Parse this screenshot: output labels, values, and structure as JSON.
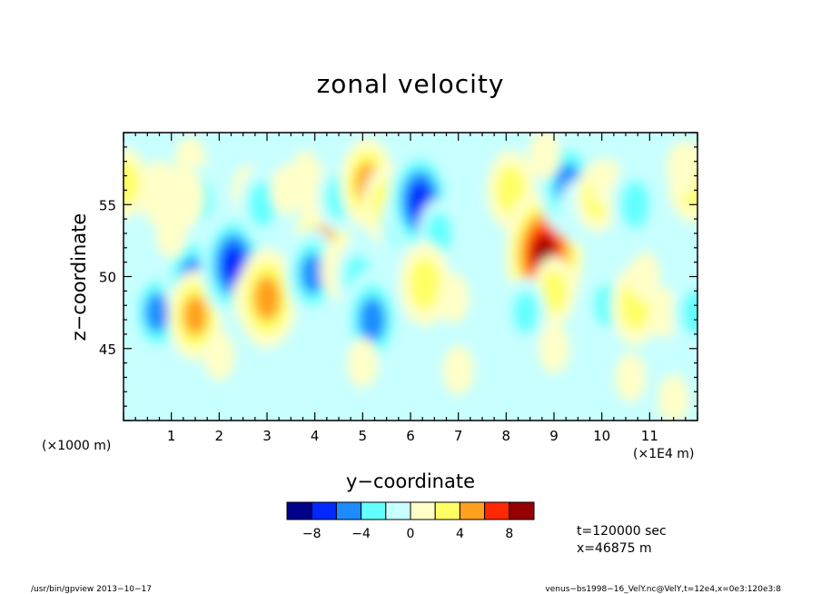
{
  "chart_data": {
    "type": "heatmap",
    "title": "zonal velocity",
    "xlabel": "y−coordinate",
    "ylabel": "z−coordinate",
    "x_unit": "(×1E4 m)",
    "y_unit": "(×1000 m)",
    "xlim": [
      0,
      12
    ],
    "ylim": [
      40,
      60
    ],
    "x_ticks": [
      "1",
      "2",
      "3",
      "4",
      "5",
      "6",
      "7",
      "8",
      "9",
      "10",
      "11"
    ],
    "y_ticks": [
      "45",
      "50",
      "55"
    ],
    "colorbar": {
      "levels": [
        -10,
        -8,
        -6,
        -4,
        -2,
        0,
        2,
        4,
        6,
        8,
        10
      ],
      "colors": [
        "#00008b",
        "#0028ff",
        "#1e8cff",
        "#64ffff",
        "#c8ffff",
        "#ffffc8",
        "#ffff64",
        "#ffa01e",
        "#ff2800",
        "#960000"
      ],
      "tick_labels": [
        "−8",
        "−4",
        "0",
        "4",
        "8"
      ]
    },
    "features": [
      {
        "x": 0.05,
        "y": 56.5,
        "value": 3
      },
      {
        "x": 1.4,
        "y": 58.0,
        "value": 1
      },
      {
        "x": 1.6,
        "y": 55.3,
        "value": -3
      },
      {
        "x": 1.3,
        "y": 55.5,
        "value": 2
      },
      {
        "x": 0.75,
        "y": 55.8,
        "value": 2.5
      },
      {
        "x": 0.7,
        "y": 47.5,
        "value": -5
      },
      {
        "x": 1.45,
        "y": 49.8,
        "value": -6
      },
      {
        "x": 1.5,
        "y": 47.3,
        "value": 5
      },
      {
        "x": 1.0,
        "y": 53.0,
        "value": 1
      },
      {
        "x": 2.3,
        "y": 50.8,
        "value": -7
      },
      {
        "x": 2.6,
        "y": 48.5,
        "value": 1
      },
      {
        "x": 2.6,
        "y": 56.0,
        "value": 1
      },
      {
        "x": 2.9,
        "y": 55.0,
        "value": -3.5
      },
      {
        "x": 3.0,
        "y": 48.5,
        "value": 6
      },
      {
        "x": 3.4,
        "y": 56.0,
        "value": 1
      },
      {
        "x": 3.8,
        "y": 57.0,
        "value": 1
      },
      {
        "x": 4.15,
        "y": 52.5,
        "value": 5
      },
      {
        "x": 3.95,
        "y": 50.2,
        "value": -5
      },
      {
        "x": 4.05,
        "y": 55.5,
        "value": 2
      },
      {
        "x": 4.5,
        "y": 55.5,
        "value": -3
      },
      {
        "x": 4.5,
        "y": 50.5,
        "value": 2
      },
      {
        "x": 5.1,
        "y": 56.5,
        "value": 5
      },
      {
        "x": 4.9,
        "y": 50.0,
        "value": -3
      },
      {
        "x": 5.2,
        "y": 47.0,
        "value": -6
      },
      {
        "x": 5.5,
        "y": 55.0,
        "value": 4
      },
      {
        "x": 5.8,
        "y": 53.5,
        "value": -3
      },
      {
        "x": 6.2,
        "y": 55.2,
        "value": -7
      },
      {
        "x": 6.6,
        "y": 53.0,
        "value": -3
      },
      {
        "x": 6.3,
        "y": 49.5,
        "value": 4.5
      },
      {
        "x": 6.9,
        "y": 48.5,
        "value": 1
      },
      {
        "x": 5.0,
        "y": 44.0,
        "value": 1
      },
      {
        "x": 2.0,
        "y": 44.5,
        "value": 1
      },
      {
        "x": 7.0,
        "y": 43.5,
        "value": 1
      },
      {
        "x": 8.1,
        "y": 56.0,
        "value": 4
      },
      {
        "x": 8.55,
        "y": 53.0,
        "value": 4
      },
      {
        "x": 8.8,
        "y": 51.5,
        "value": 9
      },
      {
        "x": 9.0,
        "y": 49.0,
        "value": 3
      },
      {
        "x": 8.4,
        "y": 47.5,
        "value": -3
      },
      {
        "x": 9.3,
        "y": 56.3,
        "value": -6
      },
      {
        "x": 9.5,
        "y": 54.5,
        "value": -2.5
      },
      {
        "x": 9.9,
        "y": 55.5,
        "value": 3
      },
      {
        "x": 10.1,
        "y": 56.5,
        "value": 1
      },
      {
        "x": 10.7,
        "y": 55.0,
        "value": -4
      },
      {
        "x": 10.1,
        "y": 48.0,
        "value": -3
      },
      {
        "x": 10.7,
        "y": 48.0,
        "value": 4
      },
      {
        "x": 10.9,
        "y": 50.0,
        "value": 1
      },
      {
        "x": 11.9,
        "y": 56.5,
        "value": 4
      },
      {
        "x": 11.7,
        "y": 57.5,
        "value": 1.5
      },
      {
        "x": 11.3,
        "y": 47.5,
        "value": 1
      },
      {
        "x": 11.95,
        "y": 47.5,
        "value": -3.5
      },
      {
        "x": 10.6,
        "y": 43.0,
        "value": 1
      },
      {
        "x": 11.5,
        "y": 41.5,
        "value": 1
      },
      {
        "x": 8.8,
        "y": 58.5,
        "value": 1
      },
      {
        "x": 9.0,
        "y": 45.0,
        "value": 1
      },
      {
        "x": 3.5,
        "y": 42.0,
        "value": -1
      },
      {
        "x": 8.0,
        "y": 43.0,
        "value": -1
      }
    ]
  },
  "info": {
    "time_label": "t=120000 sec",
    "x_label": "x=46875 m"
  },
  "footer": {
    "left": "/usr/bin/gpview   2013−10−17",
    "right": "venus−bs1998−16_VelY.nc@VelY,t=12e4,x=0e3:120e3:8"
  }
}
